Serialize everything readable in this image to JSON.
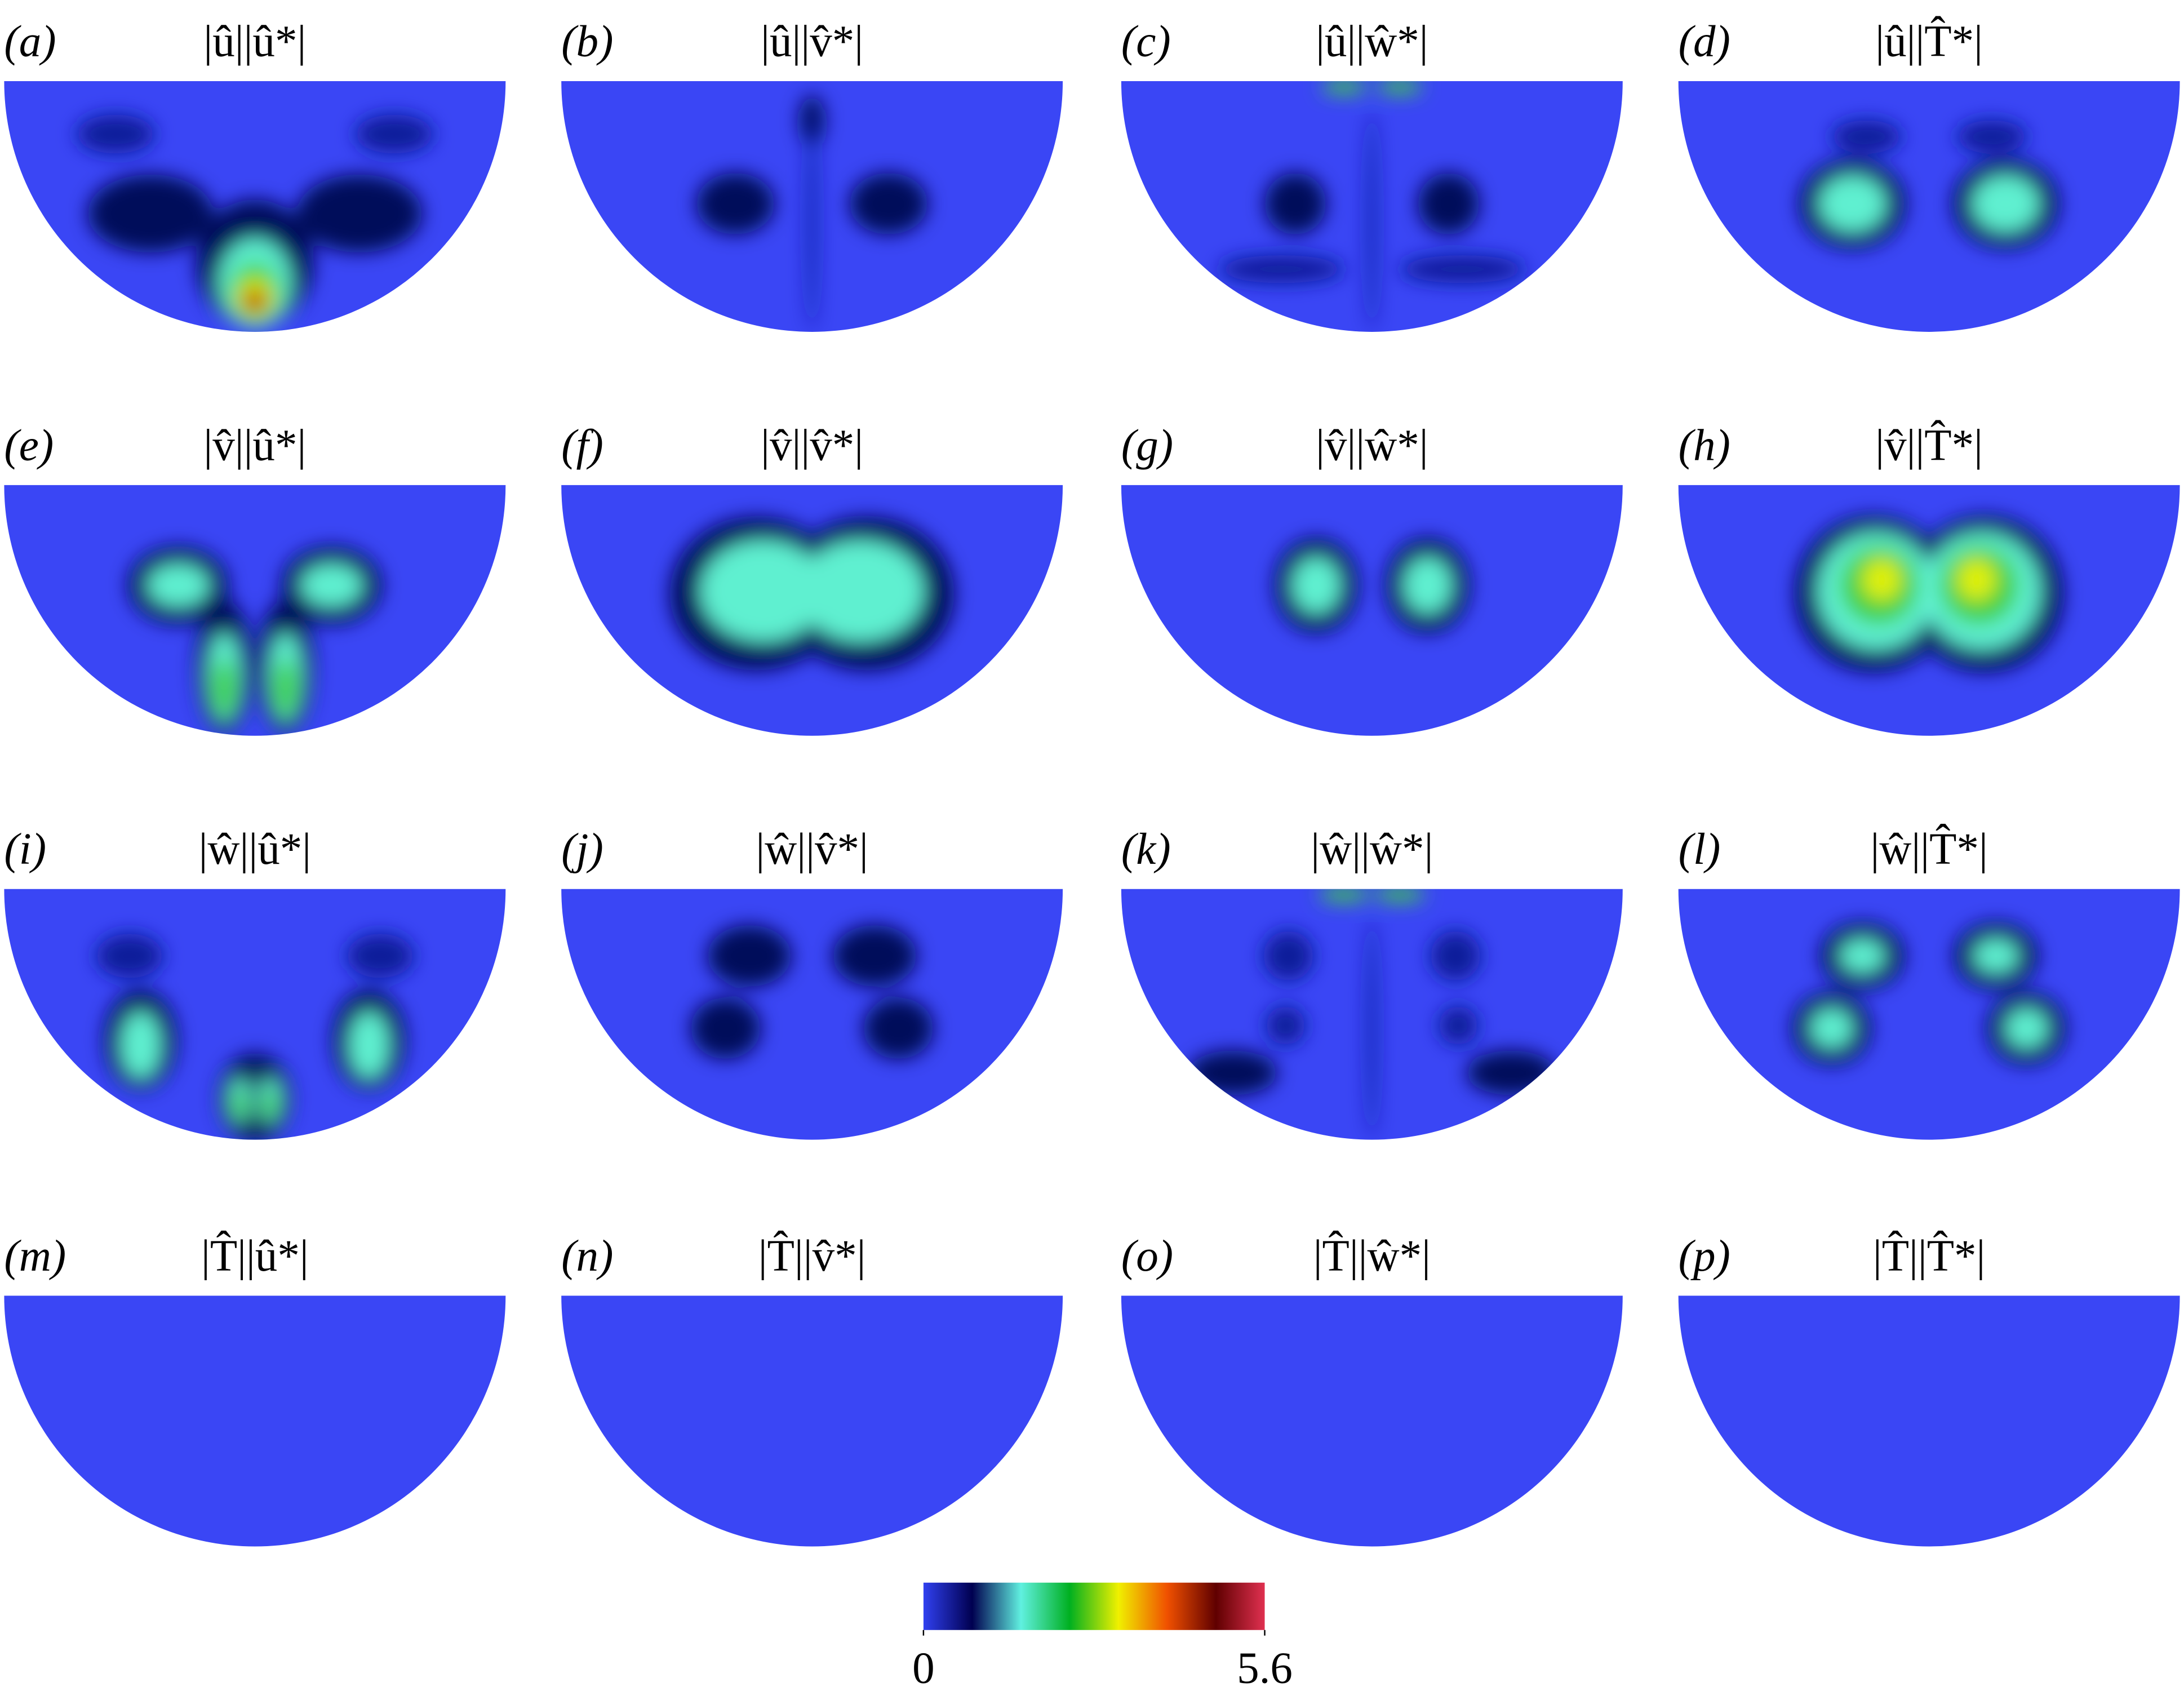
{
  "panels": [
    {
      "label": "(a)",
      "title": "|û||û*|"
    },
    {
      "label": "(b)",
      "title": "|û||v̂*|"
    },
    {
      "label": "(c)",
      "title": "|û||ŵ*|"
    },
    {
      "label": "(d)",
      "title": "|û||T̂*|"
    },
    {
      "label": "(e)",
      "title": "|v̂||û*|"
    },
    {
      "label": "(f)",
      "title": "|v̂||v̂*|"
    },
    {
      "label": "(g)",
      "title": "|v̂||ŵ*|"
    },
    {
      "label": "(h)",
      "title": "|v̂||T̂*|"
    },
    {
      "label": "(i)",
      "title": "|ŵ||û*|"
    },
    {
      "label": "(j)",
      "title": "|ŵ||v̂*|"
    },
    {
      "label": "(k)",
      "title": "|ŵ||ŵ*|"
    },
    {
      "label": "(l)",
      "title": "|ŵ||T̂*|"
    },
    {
      "label": "(m)",
      "title": "|T̂||û*|"
    },
    {
      "label": "(n)",
      "title": "|T̂||v̂*|"
    },
    {
      "label": "(o)",
      "title": "|T̂||ŵ*|"
    },
    {
      "label": "(p)",
      "title": "|T̂||T̂*|"
    }
  ],
  "colorbar": {
    "range": [
      0,
      5.6
    ],
    "ticks": [
      0,
      5.6
    ],
    "colors": [
      "#3040f0",
      "#000050",
      "#60f0e0",
      "#00b020",
      "#f0f000",
      "#f05000",
      "#600000",
      "#e03050"
    ]
  }
}
